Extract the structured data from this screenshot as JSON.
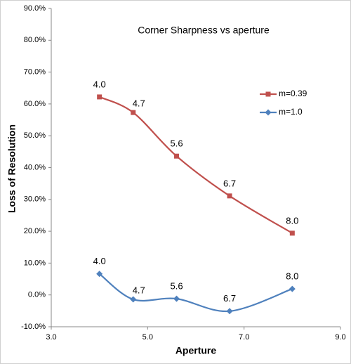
{
  "chart_data": {
    "type": "line",
    "title": "Corner Sharpness vs aperture",
    "x_label": "Aperture",
    "y_label": "Loss of Resolution",
    "x": [
      {
        "value": 4.0,
        "label": "4.0"
      },
      {
        "value": 4.7,
        "label": "4.7"
      },
      {
        "value": 5.6,
        "label": "5.6"
      },
      {
        "value": 6.7,
        "label": "6.7"
      },
      {
        "value": 8.0,
        "label": "8.0"
      }
    ],
    "series": [
      {
        "name": "m=0.39",
        "color": "#c0504d",
        "marker": "square",
        "values": [
          62.2,
          57.3,
          43.6,
          31.1,
          19.4
        ]
      },
      {
        "name": "m=1.0",
        "color": "#4f81bd",
        "marker": "diamond",
        "values": [
          6.6,
          -1.4,
          -1.2,
          -5.1,
          1.9
        ]
      }
    ],
    "xlim": [
      3,
      9
    ],
    "xticks": [
      {
        "value": 3,
        "label": "3.0"
      },
      {
        "value": 5,
        "label": "5.0"
      },
      {
        "value": 7,
        "label": "7.0"
      },
      {
        "value": 9,
        "label": "9.0"
      }
    ],
    "ylim": [
      -10,
      90
    ],
    "yticks": [
      {
        "value": -10,
        "label": "-10.0%"
      },
      {
        "value": 0,
        "label": "0.0%"
      },
      {
        "value": 10,
        "label": "10.0%"
      },
      {
        "value": 20,
        "label": "20.0%"
      },
      {
        "value": 30,
        "label": "30.0%"
      },
      {
        "value": 40,
        "label": "40.0%"
      },
      {
        "value": 50,
        "label": "50.0%"
      },
      {
        "value": 60,
        "label": "60.0%"
      },
      {
        "value": 70,
        "label": "70.0%"
      },
      {
        "value": 80,
        "label": "80.0%"
      },
      {
        "value": 90,
        "label": "90.0%"
      }
    ],
    "grid": false,
    "legend": "upper right"
  }
}
